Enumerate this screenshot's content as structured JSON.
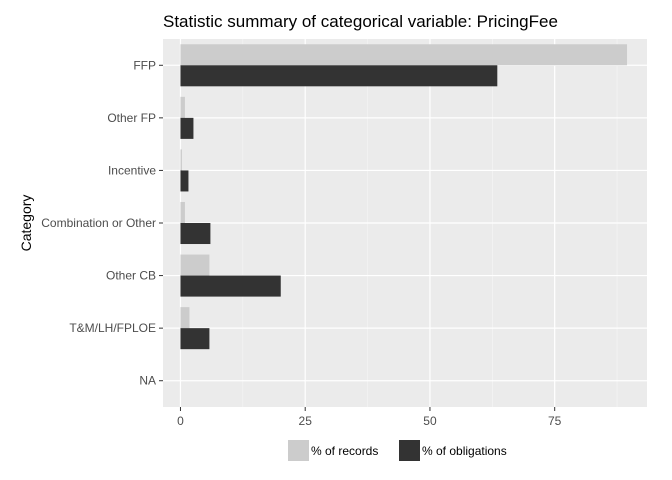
{
  "chart_data": {
    "type": "bar",
    "orientation": "horizontal",
    "title": "Statistic summary of categorical variable:  PricingFee",
    "xlabel": "",
    "ylabel": "Category",
    "categories": [
      "FFP",
      "Other FP",
      "Incentive",
      "Combination or Other",
      "Other CB",
      "T&M/LH/FPLOE",
      "NA"
    ],
    "series": [
      {
        "name": "% of records",
        "color": "#cccccc",
        "values": [
          89.5,
          0.9,
          0.3,
          0.9,
          5.8,
          1.8,
          0
        ]
      },
      {
        "name": "% of obligations",
        "color": "#333333",
        "values": [
          63.5,
          2.6,
          1.6,
          6.0,
          20.1,
          5.8,
          0
        ]
      }
    ],
    "xlim": [
      -3.5,
      93.5
    ],
    "xticks": [
      0,
      25,
      50,
      75
    ],
    "grid": true,
    "background": "#ebebeb",
    "legend_position": "bottom"
  }
}
